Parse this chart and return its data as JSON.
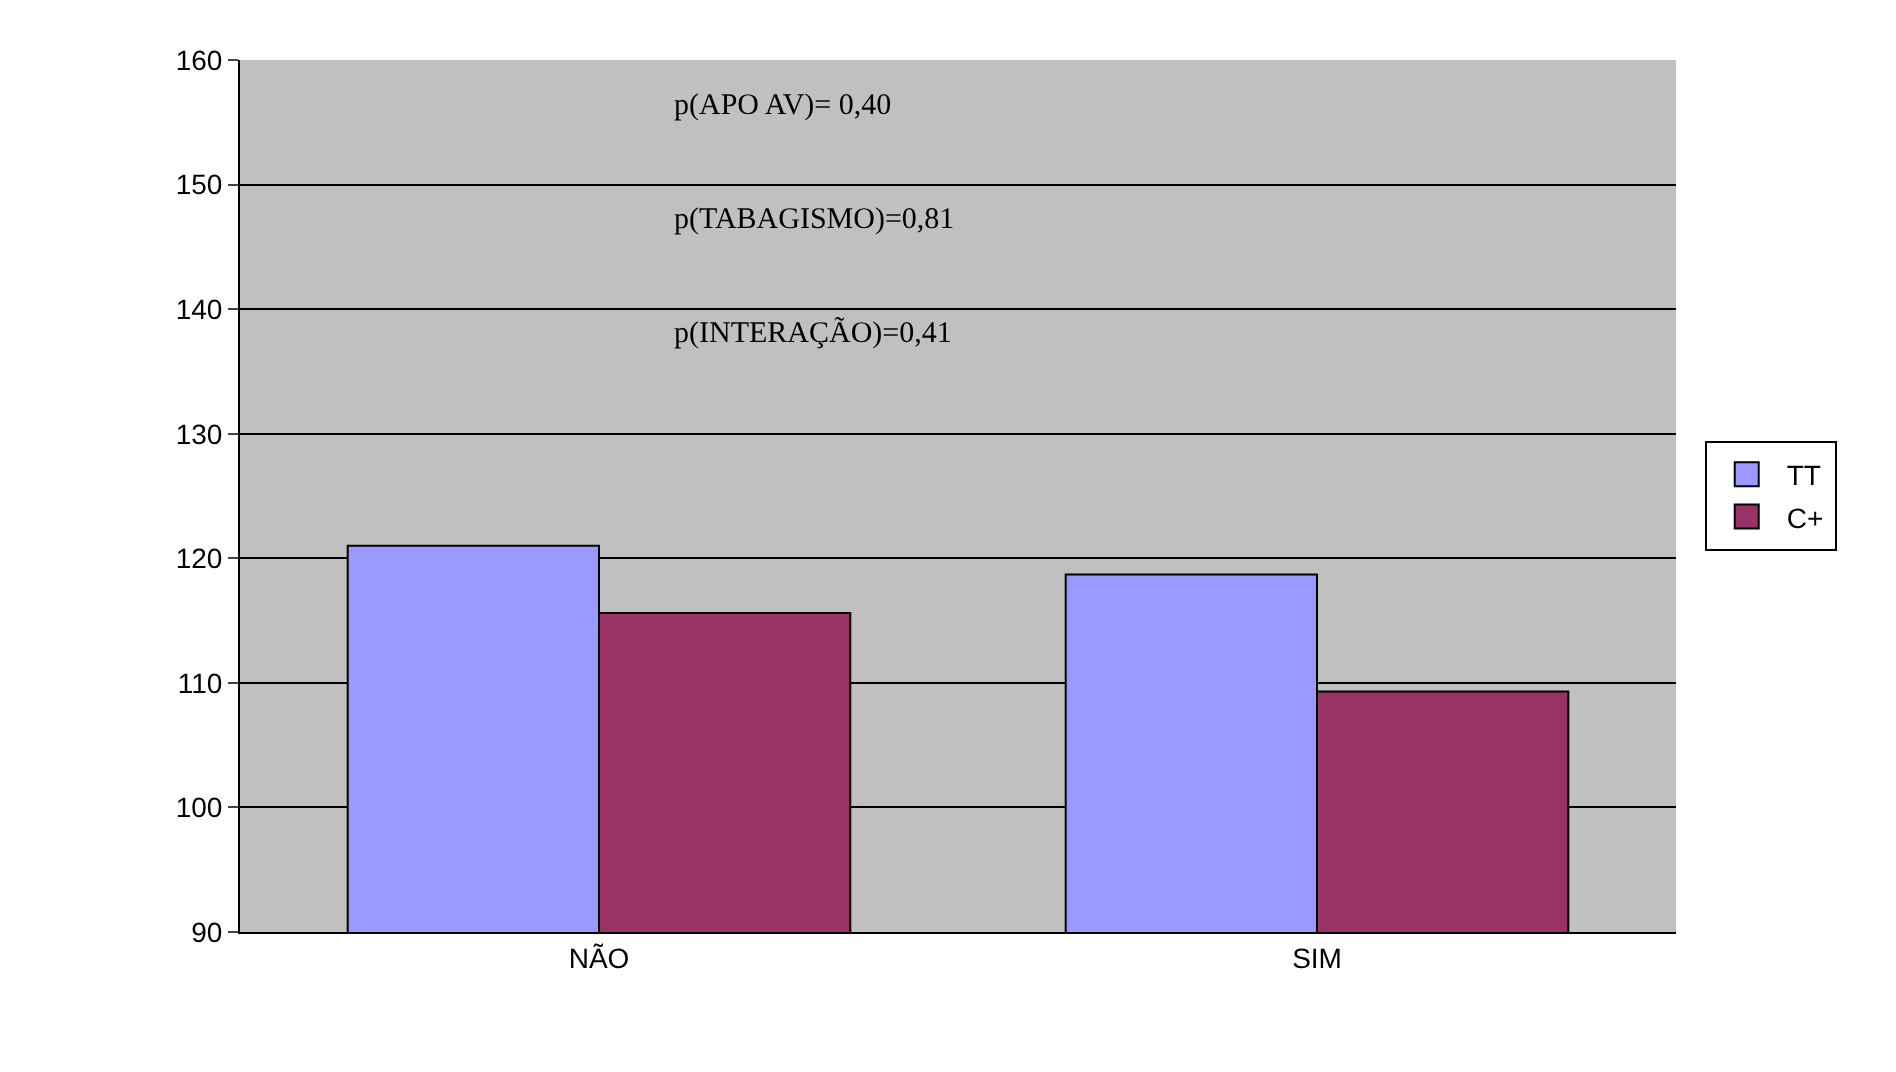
{
  "chart_data": {
    "type": "bar",
    "categories": [
      "NÃO",
      "SIM"
    ],
    "series": [
      {
        "name": "TT",
        "color": "#9999ff",
        "values": [
          121,
          118.7
        ]
      },
      {
        "name": "C+",
        "color": "#993366",
        "values": [
          115.6,
          109.3
        ]
      }
    ],
    "ylim": [
      90,
      160
    ],
    "yticks": [
      90,
      100,
      110,
      120,
      130,
      140,
      150,
      160
    ],
    "grid": "y",
    "legend": "right",
    "annotations": [
      "p(APO AV)= 0,40",
      "p(TABAGISMO)=0,81",
      "p(INTERAÇÃO)=0,41"
    ]
  }
}
